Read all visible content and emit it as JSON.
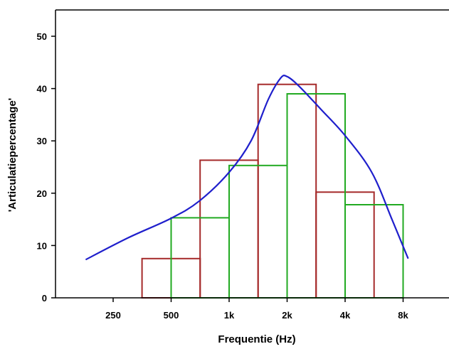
{
  "chart_data": {
    "type": "bar",
    "xlabel": "Frequentie (Hz)",
    "ylabel": "'Articulatiepercentage'",
    "x_scale": "log2",
    "x_ticks": [
      {
        "value": 250,
        "label": "250"
      },
      {
        "value": 500,
        "label": "500"
      },
      {
        "value": 1000,
        "label": "1k"
      },
      {
        "value": 2000,
        "label": "2k"
      },
      {
        "value": 4000,
        "label": "4k"
      },
      {
        "value": 8000,
        "label": "8k"
      }
    ],
    "y_ticks": [
      0,
      10,
      20,
      30,
      40,
      50
    ],
    "xlim": [
      125,
      15000
    ],
    "ylim": [
      0,
      55
    ],
    "grid": false,
    "legend": "none",
    "colors": {
      "red": "#a52a2a",
      "green": "#22aa22",
      "blue": "#1f1fcc",
      "axis": "#000000"
    },
    "series": [
      {
        "type": "bar",
        "color_key": "red",
        "bins": [
          {
            "x0": 353,
            "x1": 707,
            "value": 7.5
          },
          {
            "x0": 707,
            "x1": 1414,
            "value": 26.3
          },
          {
            "x0": 1414,
            "x1": 2828,
            "value": 40.8
          },
          {
            "x0": 2828,
            "x1": 5657,
            "value": 20.2
          }
        ]
      },
      {
        "type": "bar",
        "color_key": "green",
        "bins": [
          {
            "x0": 500,
            "x1": 1000,
            "value": 15.3
          },
          {
            "x0": 1000,
            "x1": 2000,
            "value": 25.3
          },
          {
            "x0": 2000,
            "x1": 4000,
            "value": 39
          },
          {
            "x0": 4000,
            "x1": 8000,
            "value": 17.8
          }
        ]
      },
      {
        "type": "line",
        "color_key": "blue",
        "points": [
          {
            "x": 180,
            "y": 7.3
          },
          {
            "x": 300,
            "y": 11.5
          },
          {
            "x": 500,
            "y": 15.2
          },
          {
            "x": 700,
            "y": 18.5
          },
          {
            "x": 1000,
            "y": 24
          },
          {
            "x": 1300,
            "y": 30
          },
          {
            "x": 1600,
            "y": 38
          },
          {
            "x": 1850,
            "y": 42
          },
          {
            "x": 2000,
            "y": 42.3
          },
          {
            "x": 2300,
            "y": 40.5
          },
          {
            "x": 3000,
            "y": 36
          },
          {
            "x": 4000,
            "y": 31
          },
          {
            "x": 5500,
            "y": 24
          },
          {
            "x": 7000,
            "y": 15
          },
          {
            "x": 8500,
            "y": 7.5
          }
        ]
      }
    ]
  }
}
